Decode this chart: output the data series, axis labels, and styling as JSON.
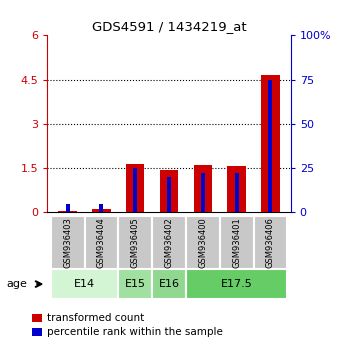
{
  "title": "GDS4591 / 1434219_at",
  "samples": [
    "GSM936403",
    "GSM936404",
    "GSM936405",
    "GSM936402",
    "GSM936400",
    "GSM936401",
    "GSM936406"
  ],
  "transformed_count": [
    0.05,
    0.12,
    1.65,
    1.45,
    1.62,
    1.58,
    4.65
  ],
  "percentile_rank": [
    5,
    5,
    25,
    20,
    22,
    22,
    75
  ],
  "age_groups": [
    {
      "label": "E14",
      "samples": [
        0,
        1
      ],
      "color": "#d4f5d4"
    },
    {
      "label": "E15",
      "samples": [
        2
      ],
      "color": "#a0e0a0"
    },
    {
      "label": "E16",
      "samples": [
        3
      ],
      "color": "#90d890"
    },
    {
      "label": "E17.5",
      "samples": [
        4,
        5,
        6
      ],
      "color": "#66cc66"
    }
  ],
  "left_ylim": [
    0,
    6
  ],
  "right_ylim": [
    0,
    100
  ],
  "left_yticks": [
    0,
    1.5,
    3,
    4.5,
    6
  ],
  "right_yticks": [
    0,
    25,
    50,
    75,
    100
  ],
  "left_yticklabels": [
    "0",
    "1.5",
    "3",
    "4.5",
    "6"
  ],
  "right_yticklabels": [
    "0",
    "25",
    "50",
    "75",
    "100%"
  ],
  "gridlines": [
    1.5,
    3.0,
    4.5
  ],
  "red_color": "#cc0000",
  "blue_color": "#0000cc",
  "gray_bg": "#c8c8c8",
  "age_label": "age",
  "legend_red": "transformed count",
  "legend_blue": "percentile rank within the sample"
}
